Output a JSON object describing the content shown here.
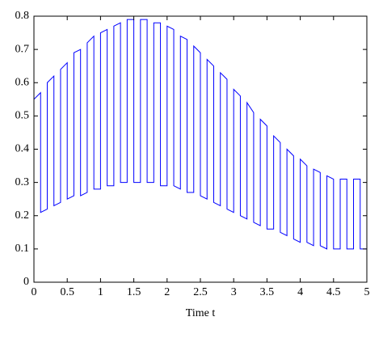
{
  "chart_data": {
    "type": "line",
    "xlabel": "Time t",
    "color": "#0000ff",
    "xlim": [
      0,
      5
    ],
    "ylim": [
      0,
      0.8
    ],
    "xticks": [
      0,
      0.5,
      1,
      1.5,
      2,
      2.5,
      3,
      3.5,
      4,
      4.5,
      5
    ],
    "yticks": [
      0,
      0.1,
      0.2,
      0.3,
      0.4,
      0.5,
      0.6,
      0.7,
      0.8
    ],
    "x": [
      0,
      0,
      0.1,
      0.1,
      0.2,
      0.2,
      0.3,
      0.3,
      0.4,
      0.4,
      0.5,
      0.5,
      0.6,
      0.6,
      0.7,
      0.7,
      0.8,
      0.8,
      0.9,
      0.9,
      1,
      1,
      1.1,
      1.1,
      1.2,
      1.2,
      1.3,
      1.3,
      1.4,
      1.4,
      1.5,
      1.5,
      1.6,
      1.6,
      1.7,
      1.7,
      1.8,
      1.8,
      1.9,
      1.9,
      2,
      2,
      2.1,
      2.1,
      2.2,
      2.2,
      2.3,
      2.3,
      2.4,
      2.4,
      2.5,
      2.5,
      2.6,
      2.6,
      2.7,
      2.7,
      2.8,
      2.8,
      2.9,
      2.9,
      3,
      3,
      3.1,
      3.1,
      3.2,
      3.2,
      3.3,
      3.3,
      3.4,
      3.4,
      3.5,
      3.5,
      3.6,
      3.6,
      3.7,
      3.7,
      3.8,
      3.8,
      3.9,
      3.9,
      4,
      4,
      4.1,
      4.1,
      4.2,
      4.2,
      4.3,
      4.3,
      4.4,
      4.4,
      4.5,
      4.5,
      4.6,
      4.6,
      4.7,
      4.7,
      4.8,
      4.8,
      4.9,
      4.9,
      5,
      5
    ],
    "values": [
      0.2,
      0.55,
      0.57,
      0.21,
      0.22,
      0.6,
      0.62,
      0.23,
      0.24,
      0.64,
      0.66,
      0.25,
      0.26,
      0.69,
      0.7,
      0.26,
      0.27,
      0.72,
      0.74,
      0.28,
      0.28,
      0.75,
      0.76,
      0.29,
      0.29,
      0.77,
      0.78,
      0.3,
      0.3,
      0.79,
      0.79,
      0.3,
      0.3,
      0.79,
      0.79,
      0.3,
      0.3,
      0.78,
      0.78,
      0.29,
      0.29,
      0.77,
      0.76,
      0.29,
      0.28,
      0.74,
      0.73,
      0.27,
      0.27,
      0.71,
      0.69,
      0.26,
      0.25,
      0.67,
      0.65,
      0.24,
      0.23,
      0.63,
      0.61,
      0.22,
      0.21,
      0.58,
      0.56,
      0.2,
      0.19,
      0.54,
      0.51,
      0.18,
      0.17,
      0.49,
      0.47,
      0.16,
      0.16,
      0.44,
      0.42,
      0.15,
      0.14,
      0.4,
      0.38,
      0.13,
      0.12,
      0.37,
      0.35,
      0.12,
      0.11,
      0.34,
      0.33,
      0.11,
      0.1,
      0.32,
      0.31,
      0.1,
      0.1,
      0.31,
      0.31,
      0.1,
      0.1,
      0.31,
      0.31,
      0.1,
      0.1,
      0.32
    ]
  }
}
